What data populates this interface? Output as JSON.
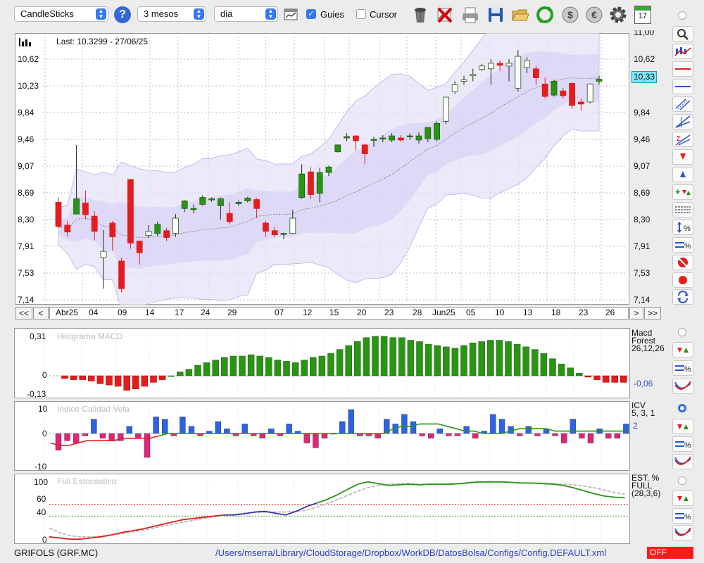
{
  "toolbar": {
    "chart_type": "CandleSticks",
    "period": "3 mesos",
    "interval": "dia",
    "guies_label": "Guies",
    "guies_checked": true,
    "cursor_label": "Cursor",
    "cursor_checked": false,
    "calendar_day": "17"
  },
  "main_chart": {
    "last_label": "Last: 10.3299 - 27/06/25",
    "y_left_ticks": [
      "10,62",
      "10,23",
      "9,84",
      "9,46",
      "9,07",
      "8,69",
      "8,30",
      "7,91",
      "7,53",
      "7,14"
    ],
    "y_right_ticks": [
      "11,00",
      "10,62",
      "10,23",
      "9,84",
      "9,46",
      "9,07",
      "8,69",
      "8,30",
      "7,91",
      "7,53",
      "7,14"
    ],
    "current_price": "10,33",
    "x_labels": [
      "Abr25",
      "04",
      "09",
      "14",
      "17",
      "24",
      "29",
      "07",
      "12",
      "15",
      "20",
      "23",
      "28",
      "Jun25",
      "05",
      "10",
      "13",
      "18",
      "23",
      "26"
    ],
    "nav_first": "<<",
    "nav_prev": "<",
    "nav_next": ">",
    "nav_last": ">>"
  },
  "chart_data": [
    {
      "type": "candlestick",
      "title": "Last: 10.3299 - 27/06/25",
      "ylim": [
        7.14,
        11.0
      ],
      "candles": [
        [
          8.55,
          8.2,
          8.62,
          8.18
        ],
        [
          8.22,
          8.12,
          8.28,
          8.05
        ],
        [
          8.38,
          8.6,
          9.38,
          8.38
        ],
        [
          8.54,
          8.37,
          8.72,
          8.3
        ],
        [
          8.35,
          8.13,
          8.42,
          8.0
        ],
        [
          7.75,
          7.84,
          8.15,
          7.3
        ],
        [
          8.25,
          8.05,
          8.28,
          7.85
        ],
        [
          7.7,
          7.3,
          7.75,
          7.25
        ],
        [
          8.88,
          7.96,
          8.88,
          7.88
        ],
        [
          7.99,
          7.82,
          7.99,
          7.65
        ],
        [
          8.07,
          8.13,
          8.22,
          8.03
        ],
        [
          8.1,
          8.23,
          8.27,
          8.06
        ],
        [
          8.14,
          8.04,
          8.18,
          7.99
        ],
        [
          8.1,
          8.32,
          8.38,
          8.05
        ],
        [
          8.46,
          8.57,
          8.58,
          8.41
        ],
        [
          8.45,
          8.46,
          8.52,
          8.39
        ],
        [
          8.52,
          8.62,
          8.65,
          8.5
        ],
        [
          8.59,
          8.6,
          8.62,
          8.56
        ],
        [
          8.5,
          8.6,
          8.62,
          8.3
        ],
        [
          8.39,
          8.27,
          8.55,
          8.23
        ],
        [
          8.53,
          8.55,
          8.58,
          8.5
        ],
        [
          8.57,
          8.61,
          8.63,
          8.55
        ],
        [
          8.59,
          8.46,
          8.61,
          8.32
        ],
        [
          8.25,
          8.13,
          8.28,
          8.05
        ],
        [
          8.14,
          8.08,
          8.19,
          8.04
        ],
        [
          8.09,
          8.1,
          8.11,
          8.02
        ],
        [
          8.1,
          8.32,
          8.44,
          8.1
        ],
        [
          8.62,
          8.96,
          9.1,
          8.6
        ],
        [
          8.99,
          8.66,
          9.06,
          8.6
        ],
        [
          8.68,
          8.98,
          9.05,
          8.55
        ],
        [
          8.98,
          9.06,
          9.08,
          8.93
        ],
        [
          9.28,
          9.38,
          9.38,
          9.27
        ],
        [
          9.48,
          9.5,
          9.55,
          9.43
        ],
        [
          9.51,
          9.44,
          9.52,
          9.3
        ],
        [
          9.38,
          9.25,
          9.4,
          9.1
        ],
        [
          9.45,
          9.46,
          9.5,
          9.35
        ],
        [
          9.47,
          9.48,
          9.52,
          9.42
        ],
        [
          9.45,
          9.51,
          9.55,
          9.42
        ],
        [
          9.48,
          9.45,
          9.52,
          9.42
        ],
        [
          9.5,
          9.51,
          9.55,
          9.45
        ],
        [
          9.45,
          9.51,
          9.56,
          9.4
        ],
        [
          9.47,
          9.63,
          9.64,
          9.42
        ],
        [
          9.46,
          9.69,
          9.72,
          9.43
        ],
        [
          9.72,
          10.07,
          10.07,
          9.68
        ],
        [
          10.15,
          10.25,
          10.3,
          10.12
        ],
        [
          10.3,
          10.32,
          10.38,
          10.25
        ],
        [
          10.38,
          10.4,
          10.48,
          10.3
        ],
        [
          10.47,
          10.52,
          10.55,
          10.45
        ],
        [
          10.48,
          10.56,
          10.62,
          10.25
        ],
        [
          10.56,
          10.53,
          10.6,
          10.45
        ],
        [
          10.52,
          10.56,
          10.62,
          10.3
        ],
        [
          10.2,
          10.66,
          10.75,
          10.15
        ],
        [
          10.5,
          10.6,
          10.65,
          10.42
        ],
        [
          10.48,
          10.35,
          10.52,
          10.25
        ],
        [
          10.26,
          10.08,
          10.35,
          10.05
        ],
        [
          10.1,
          10.3,
          10.32,
          10.08
        ],
        [
          10.16,
          10.09,
          10.2,
          10.05
        ],
        [
          10.27,
          9.95,
          10.28,
          9.9
        ],
        [
          10.0,
          9.97,
          10.05,
          9.88
        ],
        [
          10.0,
          10.26,
          10.27,
          9.98
        ],
        [
          10.3,
          10.33,
          10.38,
          10.25
        ]
      ]
    },
    {
      "type": "bar",
      "title": "Histgrama MACD",
      "ylim": [
        -0.13,
        0.31
      ],
      "y_ticks": [
        "0,31",
        "0",
        "-0,13"
      ],
      "values": [
        -0.02,
        -0.03,
        -0.03,
        -0.04,
        -0.06,
        -0.07,
        -0.08,
        -0.11,
        -0.1,
        -0.08,
        -0.05,
        -0.03,
        0.0,
        0.03,
        0.05,
        0.08,
        0.1,
        0.12,
        0.14,
        0.15,
        0.15,
        0.16,
        0.15,
        0.14,
        0.12,
        0.11,
        0.1,
        0.12,
        0.14,
        0.15,
        0.17,
        0.2,
        0.23,
        0.26,
        0.29,
        0.3,
        0.3,
        0.29,
        0.29,
        0.27,
        0.26,
        0.24,
        0.23,
        0.22,
        0.21,
        0.23,
        0.25,
        0.26,
        0.27,
        0.27,
        0.26,
        0.24,
        0.22,
        0.2,
        0.17,
        0.13,
        0.09,
        0.06,
        0.02,
        -0.01,
        -0.03,
        -0.05,
        -0.05,
        -0.05
      ]
    },
    {
      "type": "bar",
      "title": "Indice Calidad Vela",
      "ylim": [
        -10,
        10
      ],
      "y_ticks": [
        "10",
        "0",
        "-10"
      ],
      "values": [
        -7,
        -3,
        -4,
        -1,
        6,
        -2,
        -3,
        -3,
        3,
        -2,
        -10,
        7,
        6,
        -1,
        7,
        3,
        -1,
        1,
        5,
        2,
        -1,
        4,
        -1,
        -2,
        2,
        -1,
        4,
        1,
        -4,
        -6,
        -2,
        0,
        5,
        10,
        -1,
        -1,
        -2,
        6,
        4,
        8,
        5,
        -1,
        -2,
        2,
        -1,
        -1,
        3,
        -2,
        1,
        8,
        6,
        3,
        -1,
        3,
        -1,
        2,
        -1,
        -4,
        6,
        -2,
        -4,
        2,
        -2,
        -2,
        4,
        2
      ],
      "line": [
        -4,
        -5,
        -5,
        -4,
        -3,
        -3,
        -3,
        -3,
        -2,
        -2,
        -2,
        -2,
        -1,
        0,
        0,
        0,
        0,
        0,
        0,
        0,
        0,
        0,
        0,
        0,
        0,
        0,
        0,
        0,
        0,
        0,
        0,
        0,
        0,
        0,
        0,
        0,
        0,
        0,
        2,
        3,
        3,
        4,
        4,
        4,
        3,
        2,
        1,
        1,
        0,
        0,
        0,
        1,
        2,
        2,
        2,
        2,
        1,
        1,
        1,
        1,
        1,
        1,
        1,
        1,
        1
      ]
    },
    {
      "type": "line",
      "title": "Full Estocastico",
      "ylim": [
        0,
        100
      ],
      "y_ticks": [
        "100",
        "60",
        "40",
        "0"
      ],
      "series": [
        {
          "name": "",
          "values": [
            5,
            3,
            1,
            1,
            3,
            5,
            8,
            12,
            15,
            18,
            22,
            26,
            30,
            34,
            36,
            38,
            40,
            42,
            42,
            44,
            47,
            48,
            45,
            42,
            48,
            56,
            62,
            68,
            76,
            85,
            94,
            98,
            95,
            92,
            93,
            94,
            93,
            94,
            94,
            94,
            95,
            97,
            98,
            98,
            98,
            97,
            96,
            96,
            95,
            94,
            92,
            88,
            83,
            78,
            74,
            72,
            71
          ]
        },
        {
          "name": "",
          "values": [
            20,
            12,
            7,
            5,
            5,
            6,
            8,
            10,
            13,
            16,
            19,
            23,
            26,
            30,
            33,
            36,
            39,
            41,
            43,
            45,
            46,
            47,
            47,
            47,
            48,
            50,
            55,
            61,
            68,
            75,
            82,
            88,
            92,
            94,
            95,
            95,
            94,
            94,
            94,
            95,
            95,
            96,
            97,
            97,
            97,
            97,
            96,
            96,
            96,
            95,
            94,
            93,
            91,
            88,
            84,
            80,
            77
          ]
        }
      ]
    }
  ],
  "macd_panel": {
    "title": "Histgrama MACD",
    "y_ticks": [
      "0,31",
      "0",
      "-0,13"
    ],
    "label_name": "Macd",
    "label_name2": "Forest",
    "label_params": "26,12,26",
    "label_value": "-0,06"
  },
  "icv_panel": {
    "title": "Indice Calidad Vela",
    "y_ticks": [
      "10",
      "0",
      "-10"
    ],
    "label_name": "ICV",
    "label_params": "5, 3, 1",
    "label_value": "2"
  },
  "stoch_panel": {
    "title": "Full Estocastico",
    "y_ticks": [
      "100",
      "60",
      "40",
      "0"
    ],
    "label_name": "EST. %",
    "label_name2": "FULL",
    "label_params": "(28,3,6)"
  },
  "status": {
    "symbol": "GRIFOLS (GRF.MC)",
    "path": "/Users/mserra/Library/CloudStorage/Dropbox/WorkDB/DatosBolsa/Configs/Config.DEFAULT.xml",
    "off": "OFF"
  },
  "colors": {
    "up": "#2a9414",
    "down": "#e31d1d",
    "accent": "#3478f6",
    "band": "#e6e2f7"
  }
}
